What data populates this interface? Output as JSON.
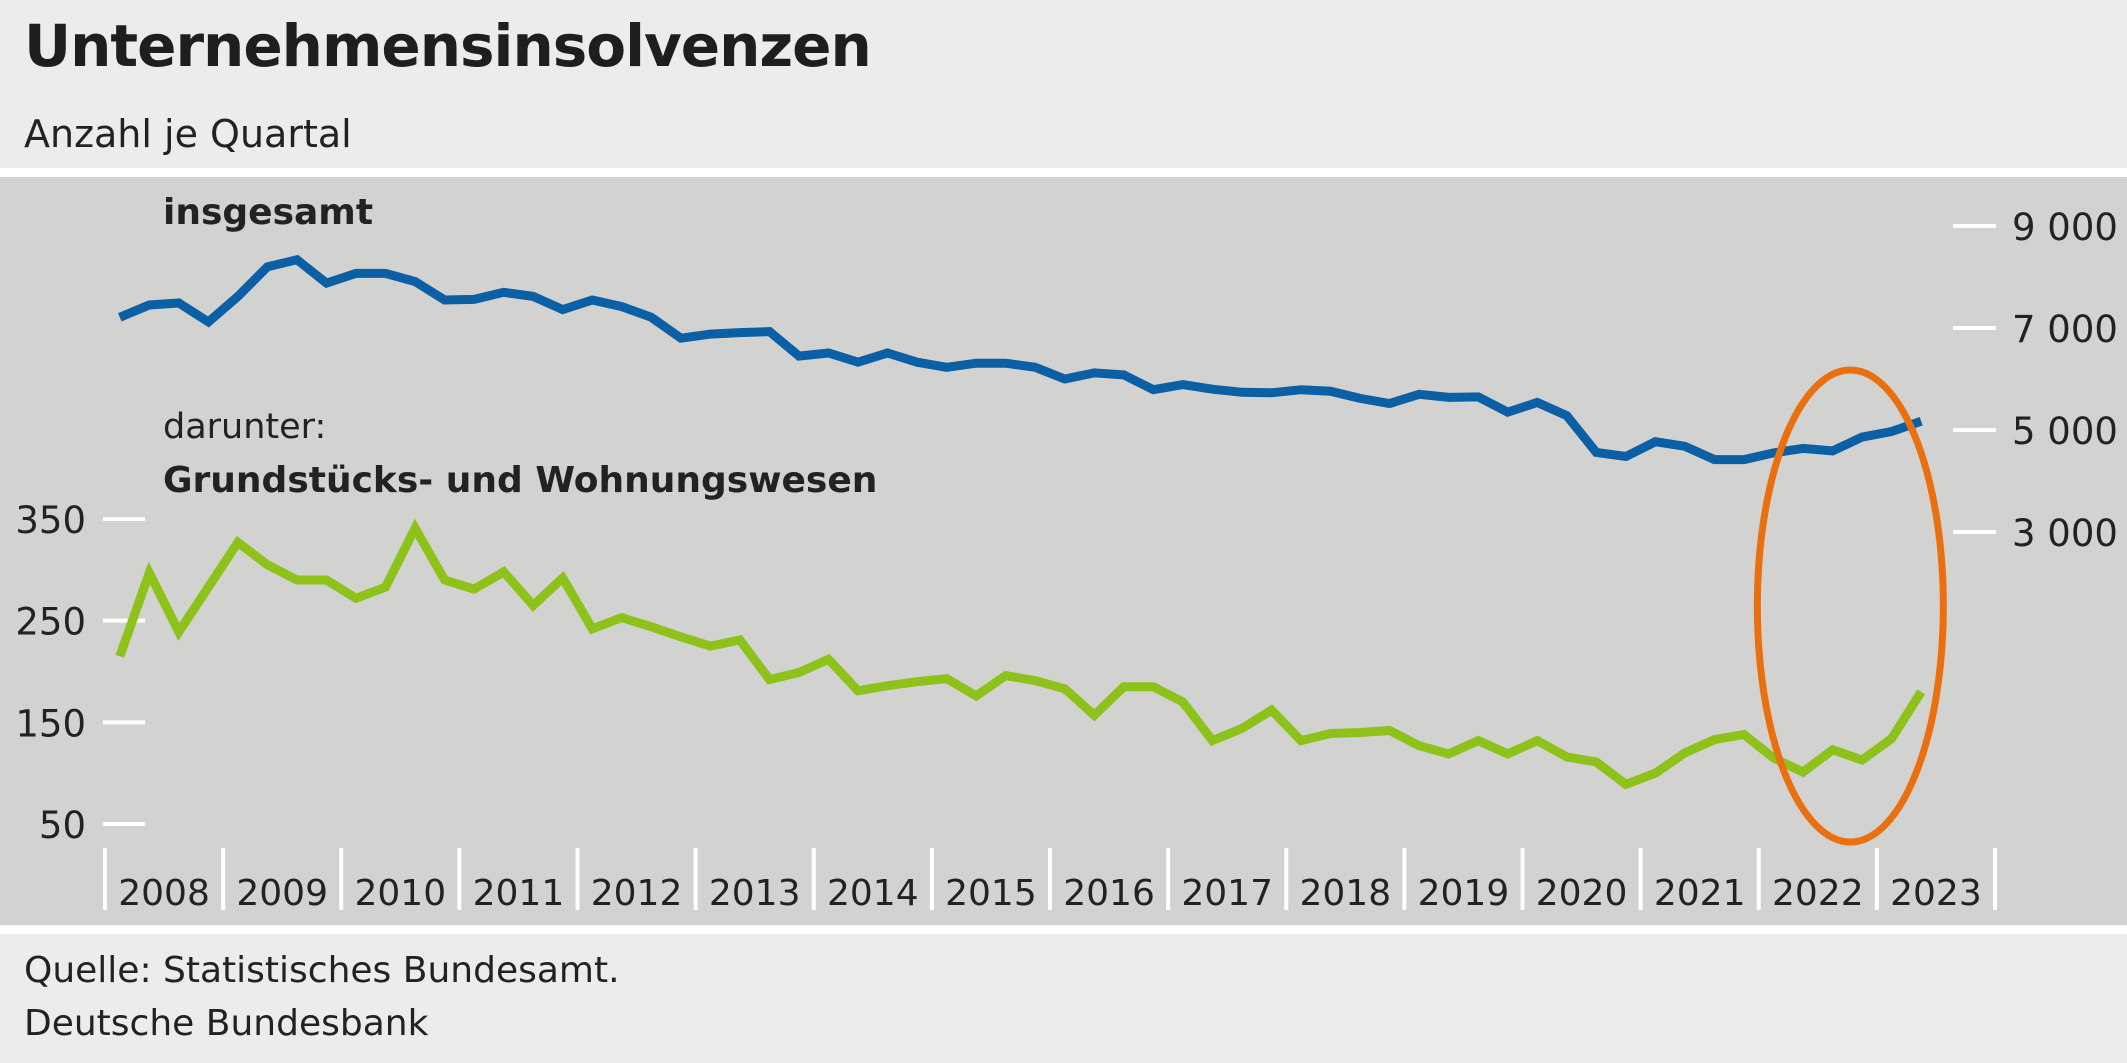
{
  "header": {
    "title": "Unternehmensinsolvenzen",
    "subtitle": "Anzahl je Quartal"
  },
  "annotations": {
    "total_label": "insgesamt",
    "sub_intro": "darunter:",
    "sub_label": "Grundstücks- und Wohnungswesen"
  },
  "footer": {
    "source": "Quelle: Statistisches Bundesamt.",
    "publisher": "Deutsche Bundesbank"
  },
  "colors": {
    "total_series": "#0b5fa5",
    "sub_series": "#8cc21a",
    "highlight": "#ea700f",
    "tick": "#ffffff",
    "panel": "#d2d2d0"
  },
  "chart_data": {
    "type": "line",
    "x_axis": {
      "tick_labels": [
        "2008",
        "2009",
        "2010",
        "2011",
        "2012",
        "2013",
        "2014",
        "2015",
        "2016",
        "2017",
        "2018",
        "2019",
        "2020",
        "2021",
        "2022",
        "2023"
      ],
      "frequency": "quarterly",
      "start": "2008-Q1",
      "end": "2023-Q2"
    },
    "y_axis_right": {
      "series": "insgesamt",
      "ticks": [
        3000,
        5000,
        7000,
        9000
      ],
      "tick_labels": [
        "3 000",
        "5 000",
        "7 000",
        "9 000"
      ],
      "range": [
        3000,
        9000
      ]
    },
    "y_axis_left": {
      "series": "Grundstücks- und Wohnungswesen",
      "ticks": [
        50,
        150,
        250,
        350
      ],
      "tick_labels": [
        "50",
        "150",
        "250",
        "350"
      ],
      "range": [
        50,
        350
      ]
    },
    "grid": false,
    "highlight": {
      "shape": "ellipse",
      "covers": [
        "2022-Q1",
        "2023-Q2"
      ]
    },
    "series": [
      {
        "name": "insgesamt",
        "axis": "right",
        "values": [
          7210,
          7450,
          7490,
          7120,
          7620,
          8200,
          8340,
          7880,
          8070,
          8070,
          7910,
          7550,
          7560,
          7700,
          7620,
          7360,
          7550,
          7420,
          7210,
          6800,
          6880,
          6910,
          6930,
          6450,
          6510,
          6330,
          6510,
          6330,
          6230,
          6310,
          6310,
          6230,
          6000,
          6120,
          6080,
          5790,
          5890,
          5800,
          5740,
          5730,
          5790,
          5760,
          5620,
          5520,
          5700,
          5640,
          5650,
          5350,
          5540,
          5280,
          4560,
          4480,
          4770,
          4680,
          4420,
          4420,
          4550,
          4640,
          4590,
          4860,
          4970,
          5170
        ]
      },
      {
        "name": "Grundstücks- und Wohnungswesen",
        "axis": "left",
        "values": [
          215,
          297,
          239,
          283,
          327,
          305,
          290,
          290,
          272,
          283,
          341,
          290,
          281,
          298,
          265,
          292,
          242,
          253,
          244,
          234,
          225,
          231,
          192,
          199,
          212,
          181,
          186,
          190,
          193,
          176,
          196,
          191,
          183,
          157,
          185,
          185,
          170,
          132,
          144,
          162,
          132,
          139,
          140,
          142,
          127,
          119,
          132,
          119,
          132,
          116,
          111,
          89,
          100,
          120,
          133,
          138,
          115,
          101,
          123,
          113,
          134,
          180
        ]
      }
    ]
  }
}
